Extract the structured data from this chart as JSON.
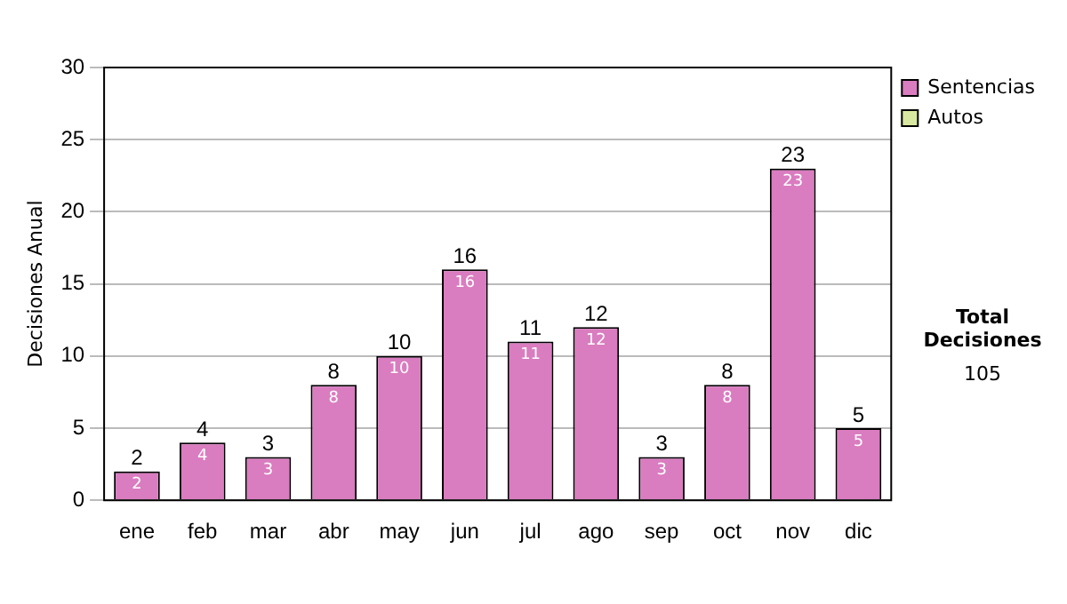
{
  "chart_data": {
    "type": "bar",
    "stacked": true,
    "ylabel": "Decisiones Anual",
    "categories": [
      "ene",
      "feb",
      "mar",
      "abr",
      "may",
      "jun",
      "jul",
      "ago",
      "sep",
      "oct",
      "nov",
      "dic"
    ],
    "series": [
      {
        "name": "Sentencias",
        "color": "#da7cc0",
        "values": [
          2,
          4,
          3,
          8,
          10,
          16,
          11,
          12,
          3,
          8,
          23,
          5
        ],
        "value_labels": [
          "2",
          "4",
          "3",
          "8",
          "10",
          "16",
          "11",
          "12",
          "3",
          "8",
          "23",
          "5"
        ]
      },
      {
        "name": "Autos",
        "color": "#d8e8a0",
        "values": [
          0,
          0,
          0,
          0,
          0,
          0,
          0,
          0,
          0,
          0,
          0,
          0
        ]
      }
    ],
    "totals": [
      "2",
      "4",
      "3",
      "8",
      "10",
      "16",
      "11",
      "12",
      "3",
      "8",
      "23",
      "5"
    ],
    "ylim": [
      0,
      30
    ],
    "yticks": [
      0,
      5,
      10,
      15,
      20,
      25,
      30
    ],
    "grid": "y",
    "legend": "right",
    "annotations": [
      "Total Decisiones",
      "105"
    ]
  }
}
